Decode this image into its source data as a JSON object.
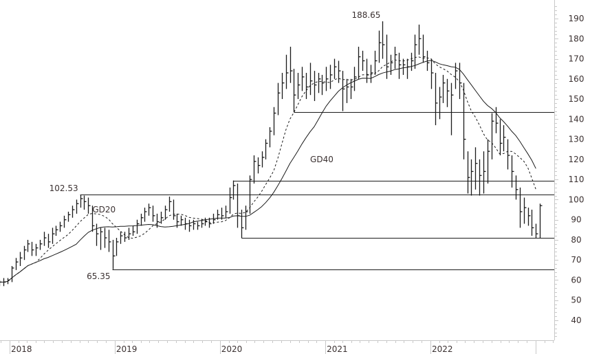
{
  "chart_data": {
    "type": "ohlc",
    "title": "",
    "xlabel": "",
    "ylabel": "",
    "ylim": [
      30,
      195
    ],
    "y_ticks": [
      40,
      50,
      60,
      70,
      80,
      90,
      100,
      110,
      120,
      130,
      140,
      150,
      160,
      170,
      180,
      190
    ],
    "x_ticks": [
      "2018",
      "2019",
      "2020",
      "2021",
      "2022"
    ],
    "grid": false,
    "bar_color": "#1a1a1a",
    "bars_fields": [
      "date",
      "high",
      "low",
      "close"
    ],
    "bars": [
      [
        "2017-11-27",
        60,
        57,
        59
      ],
      [
        "2017-12-11",
        61,
        57,
        59
      ],
      [
        "2017-12-25",
        61,
        58,
        60
      ],
      [
        "2018-01-08",
        67,
        59,
        66
      ],
      [
        "2018-01-22",
        71,
        65,
        69
      ],
      [
        "2018-02-05",
        74,
        67,
        71
      ],
      [
        "2018-02-19",
        77,
        70,
        75
      ],
      [
        "2018-03-05",
        80,
        74,
        78
      ],
      [
        "2018-03-19",
        79,
        72,
        75
      ],
      [
        "2018-04-02",
        78,
        72,
        76
      ],
      [
        "2018-04-16",
        80,
        75,
        78
      ],
      [
        "2018-04-30",
        84,
        77,
        81
      ],
      [
        "2018-05-14",
        83,
        76,
        79
      ],
      [
        "2018-05-28",
        86,
        78,
        83
      ],
      [
        "2018-06-11",
        87,
        82,
        85
      ],
      [
        "2018-06-25",
        89,
        84,
        87
      ],
      [
        "2018-07-09",
        92,
        86,
        90
      ],
      [
        "2018-07-23",
        94,
        89,
        92.5
      ],
      [
        "2018-08-06",
        97,
        91,
        95
      ],
      [
        "2018-08-20",
        100,
        93,
        98
      ],
      [
        "2018-09-03",
        102.53,
        96,
        100.5
      ],
      [
        "2018-09-17",
        102,
        95,
        99
      ],
      [
        "2018-10-01",
        101,
        93,
        97
      ],
      [
        "2018-10-15",
        97,
        84,
        87
      ],
      [
        "2018-10-29",
        88,
        77,
        83
      ],
      [
        "2018-11-12",
        86,
        75,
        84
      ],
      [
        "2018-11-26",
        86,
        76,
        81
      ],
      [
        "2018-12-10",
        85,
        74,
        79
      ],
      [
        "2018-12-24",
        80,
        65.35,
        72
      ],
      [
        "2019-01-07",
        81,
        72,
        79
      ],
      [
        "2019-01-21",
        84,
        78,
        82
      ],
      [
        "2019-02-04",
        84,
        79,
        81
      ],
      [
        "2019-02-18",
        86,
        80,
        83
      ],
      [
        "2019-03-04",
        87,
        82,
        84
      ],
      [
        "2019-03-18",
        90,
        83,
        88
      ],
      [
        "2019-04-01",
        93,
        87,
        91
      ],
      [
        "2019-04-15",
        96,
        89,
        94
      ],
      [
        "2019-04-29",
        98,
        92,
        96
      ],
      [
        "2019-05-13",
        97,
        89,
        92
      ],
      [
        "2019-05-27",
        93,
        86,
        89
      ],
      [
        "2019-06-10",
        94,
        88,
        91
      ],
      [
        "2019-06-24",
        97,
        90,
        95
      ],
      [
        "2019-07-08",
        101.5,
        94,
        99
      ],
      [
        "2019-07-22",
        100,
        90,
        92
      ],
      [
        "2019-08-05",
        93,
        86,
        89
      ],
      [
        "2019-08-19",
        92,
        87,
        90
      ],
      [
        "2019-09-02",
        91,
        85,
        88
      ],
      [
        "2019-09-16",
        90,
        84,
        87
      ],
      [
        "2019-09-30",
        90,
        85,
        88
      ],
      [
        "2019-10-14",
        89,
        85,
        87
      ],
      [
        "2019-10-28",
        90,
        86,
        88
      ],
      [
        "2019-11-11",
        91,
        87,
        89
      ],
      [
        "2019-11-25",
        91,
        86,
        88
      ],
      [
        "2019-12-09",
        93,
        88,
        90
      ],
      [
        "2019-12-23",
        95,
        90,
        92.5
      ],
      [
        "2020-01-06",
        96,
        90,
        92
      ],
      [
        "2020-01-20",
        97,
        91,
        94
      ],
      [
        "2020-02-03",
        106,
        93,
        101
      ],
      [
        "2020-02-17",
        109.5,
        100,
        107
      ],
      [
        "2020-03-02",
        108,
        86,
        92
      ],
      [
        "2020-03-16",
        95,
        81,
        86
      ],
      [
        "2020-03-30",
        97,
        85,
        94
      ],
      [
        "2020-04-13",
        112,
        93,
        110
      ],
      [
        "2020-04-27",
        122,
        108,
        119
      ],
      [
        "2020-05-11",
        121,
        113,
        117
      ],
      [
        "2020-05-25",
        124,
        116,
        121
      ],
      [
        "2020-06-08",
        130,
        120,
        128
      ],
      [
        "2020-06-22",
        136,
        126,
        134
      ],
      [
        "2020-07-06",
        146,
        132,
        143
      ],
      [
        "2020-07-20",
        158,
        142,
        153
      ],
      [
        "2020-08-03",
        163,
        150,
        158
      ],
      [
        "2020-08-17",
        172,
        155,
        163
      ],
      [
        "2020-08-31",
        176,
        158,
        164
      ],
      [
        "2020-09-14",
        165,
        143.5,
        152
      ],
      [
        "2020-09-28",
        163,
        150,
        157
      ],
      [
        "2020-10-12",
        166,
        154,
        161
      ],
      [
        "2020-10-26",
        163,
        150,
        156
      ],
      [
        "2020-11-09",
        168,
        152,
        159
      ],
      [
        "2020-11-23",
        164,
        149,
        157
      ],
      [
        "2020-12-07",
        163,
        153,
        160
      ],
      [
        "2020-12-21",
        162,
        152,
        158
      ],
      [
        "2021-01-04",
        166,
        154,
        160
      ],
      [
        "2021-01-18",
        167,
        155,
        162
      ],
      [
        "2021-02-01",
        170,
        160,
        166
      ],
      [
        "2021-02-15",
        169,
        158,
        164
      ],
      [
        "2021-03-01",
        164,
        144,
        155
      ],
      [
        "2021-03-15",
        160,
        148,
        156
      ],
      [
        "2021-03-29",
        160,
        150,
        156
      ],
      [
        "2021-04-12",
        166,
        154,
        161
      ],
      [
        "2021-04-26",
        176,
        160,
        171
      ],
      [
        "2021-05-10",
        174,
        164,
        169
      ],
      [
        "2021-05-24",
        170,
        158,
        162
      ],
      [
        "2021-06-07",
        167,
        158,
        163
      ],
      [
        "2021-06-21",
        174,
        162,
        169
      ],
      [
        "2021-07-05",
        184,
        168,
        178
      ],
      [
        "2021-07-19",
        188.65,
        170,
        177
      ],
      [
        "2021-08-02",
        182,
        160,
        166
      ],
      [
        "2021-08-16",
        172,
        162,
        168
      ],
      [
        "2021-08-30",
        176,
        165,
        172
      ],
      [
        "2021-09-13",
        173,
        160,
        167
      ],
      [
        "2021-09-27",
        170,
        162,
        167
      ],
      [
        "2021-10-11",
        170,
        160,
        166
      ],
      [
        "2021-10-25",
        173,
        164,
        169
      ],
      [
        "2021-11-08",
        182,
        165,
        177
      ],
      [
        "2021-11-22",
        187,
        172,
        180
      ],
      [
        "2021-12-06",
        182,
        168,
        171
      ],
      [
        "2021-12-20",
        174,
        164,
        168
      ],
      [
        "2022-01-03",
        170,
        155,
        163
      ],
      [
        "2022-01-17",
        163,
        137,
        148
      ],
      [
        "2022-01-31",
        156,
        140,
        151
      ],
      [
        "2022-02-14",
        162,
        148,
        158
      ],
      [
        "2022-02-28",
        160,
        146,
        154
      ],
      [
        "2022-03-14",
        158,
        132,
        152
      ],
      [
        "2022-03-28",
        168,
        155,
        164
      ],
      [
        "2022-04-11",
        168,
        150,
        158
      ],
      [
        "2022-04-25",
        158,
        120,
        130
      ],
      [
        "2022-05-09",
        124,
        103,
        111
      ],
      [
        "2022-05-23",
        120,
        102,
        114
      ],
      [
        "2022-06-06",
        126,
        105,
        118
      ],
      [
        "2022-06-20",
        120,
        102,
        112
      ],
      [
        "2022-07-04",
        124,
        103,
        114
      ],
      [
        "2022-07-18",
        130,
        108,
        124
      ],
      [
        "2022-08-01",
        143,
        120,
        139
      ],
      [
        "2022-08-15",
        146,
        133,
        138
      ],
      [
        "2022-08-29",
        140,
        122,
        128
      ],
      [
        "2022-09-12",
        137,
        124,
        131
      ],
      [
        "2022-09-26",
        130,
        115,
        122
      ],
      [
        "2022-10-10",
        122,
        106,
        114
      ],
      [
        "2022-10-24",
        112,
        100,
        105
      ],
      [
        "2022-11-07",
        106,
        86,
        94
      ],
      [
        "2022-11-21",
        101,
        88,
        96
      ],
      [
        "2022-12-05",
        96,
        87,
        92
      ],
      [
        "2022-12-19",
        95,
        82,
        86
      ],
      [
        "2023-01-02",
        88,
        81,
        83
      ],
      [
        "2023-01-16",
        98,
        81,
        97
      ]
    ],
    "moving_averages": [
      {
        "name": "GD20",
        "period_weeks": 20,
        "style": "dashed",
        "color": "#1a1a1a"
      },
      {
        "name": "GD40",
        "period_weeks": 40,
        "style": "solid",
        "color": "#1a1a1a"
      }
    ],
    "levels": [
      {
        "value": 102.53,
        "from": "2018-09-03"
      },
      {
        "value": 65.35,
        "from": "2018-12-24"
      },
      {
        "value": 109.5,
        "from": "2020-02-17"
      },
      {
        "value": 81,
        "from": "2020-03-16"
      },
      {
        "value": 143.5,
        "from": "2020-09-14"
      }
    ],
    "annotations": [
      {
        "text": "102.53",
        "date": "2018-09-03",
        "value": 102.53,
        "pos": "above-left"
      },
      {
        "text": "65.35",
        "date": "2018-12-24",
        "value": 65.35,
        "pos": "below-left"
      },
      {
        "text": "188.65",
        "date": "2021-07-19",
        "value": 188.65,
        "pos": "above-left"
      },
      {
        "text": "GD20",
        "date": "2018-10-01",
        "value": 95,
        "pos": "right"
      },
      {
        "text": "GD40",
        "date": "2020-10-26",
        "value": 120,
        "pos": "right"
      }
    ]
  }
}
